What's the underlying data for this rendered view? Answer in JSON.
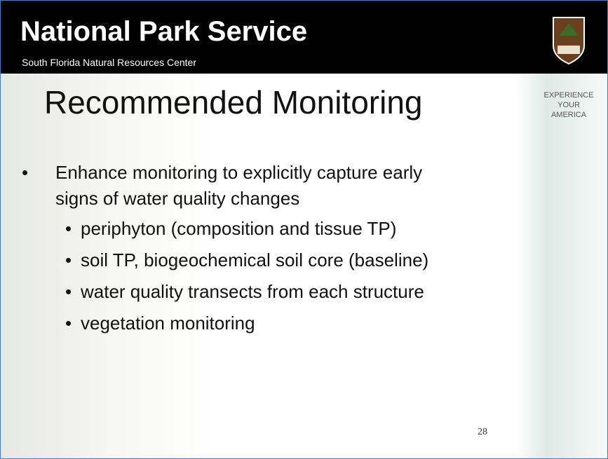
{
  "header": {
    "title": "National Park Service",
    "subtitle": "South Florida Natural Resources Center"
  },
  "tagline": [
    "EXPERIENCE",
    "YOUR",
    "AMERICA"
  ],
  "slide": {
    "title": "Recommended Monitoring",
    "bullet": [
      "Enhance monitoring to explicitly capture early",
      "signs of water quality changes"
    ],
    "subbullets": [
      "periphyton (composition and tissue TP)",
      "soil TP, biogeochemical soil core (baseline)",
      "water quality transects from each structure",
      "vegetation monitoring"
    ],
    "page_number": "28"
  }
}
